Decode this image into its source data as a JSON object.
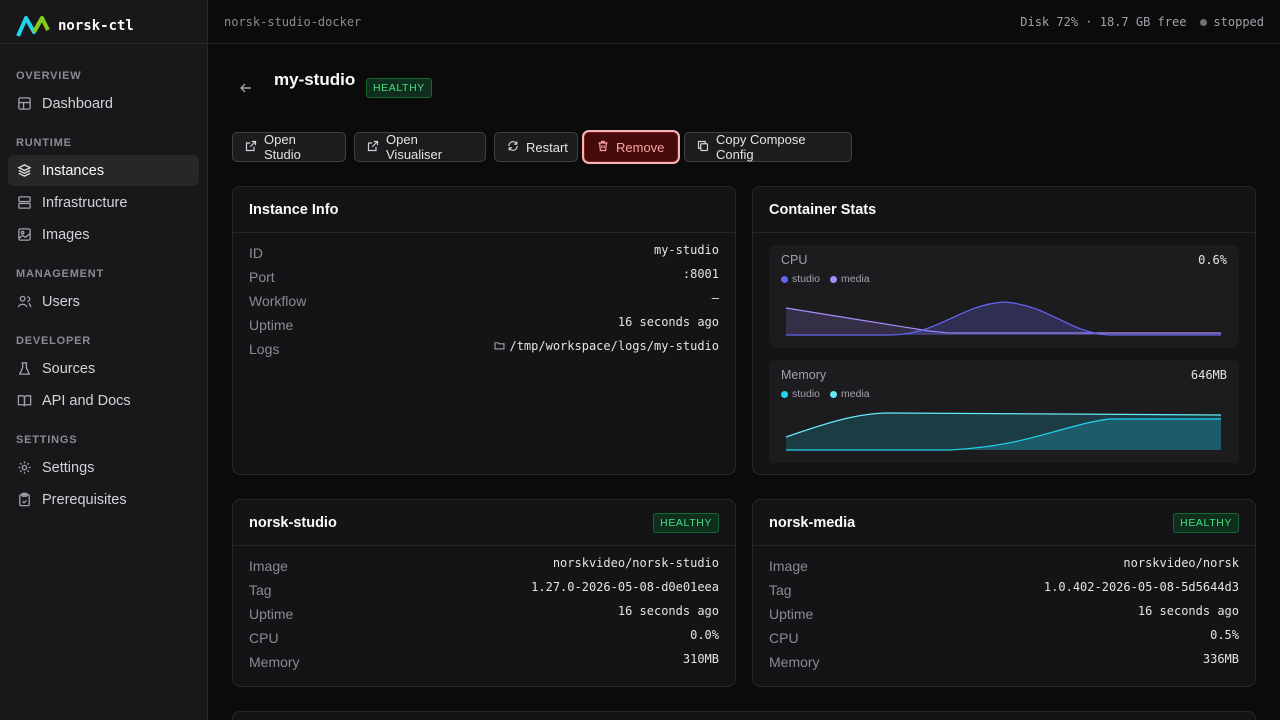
{
  "brand": {
    "name": "norsk-ctl"
  },
  "sidebar": {
    "sections": [
      {
        "title": "OVERVIEW",
        "items": [
          {
            "label": "Dashboard",
            "icon": "grid-icon"
          }
        ]
      },
      {
        "title": "RUNTIME",
        "items": [
          {
            "label": "Instances",
            "icon": "layers-icon",
            "active": true
          },
          {
            "label": "Infrastructure",
            "icon": "server-icon"
          },
          {
            "label": "Images",
            "icon": "image-icon"
          }
        ]
      },
      {
        "title": "MANAGEMENT",
        "items": [
          {
            "label": "Users",
            "icon": "users-icon"
          }
        ]
      },
      {
        "title": "DEVELOPER",
        "items": [
          {
            "label": "Sources",
            "icon": "flask-icon"
          },
          {
            "label": "API and Docs",
            "icon": "book-icon"
          }
        ]
      },
      {
        "title": "SETTINGS",
        "items": [
          {
            "label": "Settings",
            "icon": "gear-icon"
          },
          {
            "label": "Prerequisites",
            "icon": "clipboard-icon"
          }
        ]
      }
    ]
  },
  "topbar": {
    "breadcrumb": "norsk-studio-docker",
    "disk": "Disk 72% · 18.7 GB free",
    "status": "stopped"
  },
  "header": {
    "title": "my-studio",
    "badge": "HEALTHY"
  },
  "actions": {
    "open_studio": "Open Studio",
    "open_visualiser": "Open Visualiser",
    "restart": "Restart",
    "remove": "Remove",
    "copy_compose": "Copy Compose Config"
  },
  "instance_info": {
    "title": "Instance Info",
    "rows": [
      {
        "key": "ID",
        "value": "my-studio"
      },
      {
        "key": "Port",
        "value": ":8001"
      },
      {
        "key": "Workflow",
        "value": "—"
      },
      {
        "key": "Uptime",
        "value": "16 seconds ago"
      },
      {
        "key": "Logs",
        "value": "/tmp/workspace/logs/my-studio"
      }
    ]
  },
  "container_stats": {
    "title": "Container Stats",
    "cpu": {
      "label": "CPU",
      "value": "0.6%",
      "legend": [
        "studio",
        "media"
      ],
      "colors": {
        "studio": "#6366f1",
        "media": "#a78bfa"
      }
    },
    "memory": {
      "label": "Memory",
      "value": "646MB",
      "legend": [
        "studio",
        "media"
      ],
      "colors": {
        "studio": "#22d3ee",
        "media": "#67e8f9"
      }
    }
  },
  "norsk_studio": {
    "title": "norsk-studio",
    "badge": "HEALTHY",
    "rows": [
      {
        "key": "Image",
        "value": "norskvideo/norsk-studio"
      },
      {
        "key": "Tag",
        "value": "1.27.0-2026-05-08-d0e01eea"
      },
      {
        "key": "Uptime",
        "value": "16 seconds ago"
      },
      {
        "key": "CPU",
        "value": "0.0%"
      },
      {
        "key": "Memory",
        "value": "310MB"
      }
    ]
  },
  "norsk_media": {
    "title": "norsk-media",
    "badge": "HEALTHY",
    "rows": [
      {
        "key": "Image",
        "value": "norskvideo/norsk"
      },
      {
        "key": "Tag",
        "value": "1.0.402-2026-05-08-5d5644d3"
      },
      {
        "key": "Uptime",
        "value": "16 seconds ago"
      },
      {
        "key": "CPU",
        "value": "0.5%"
      },
      {
        "key": "Memory",
        "value": "336MB"
      }
    ]
  }
}
